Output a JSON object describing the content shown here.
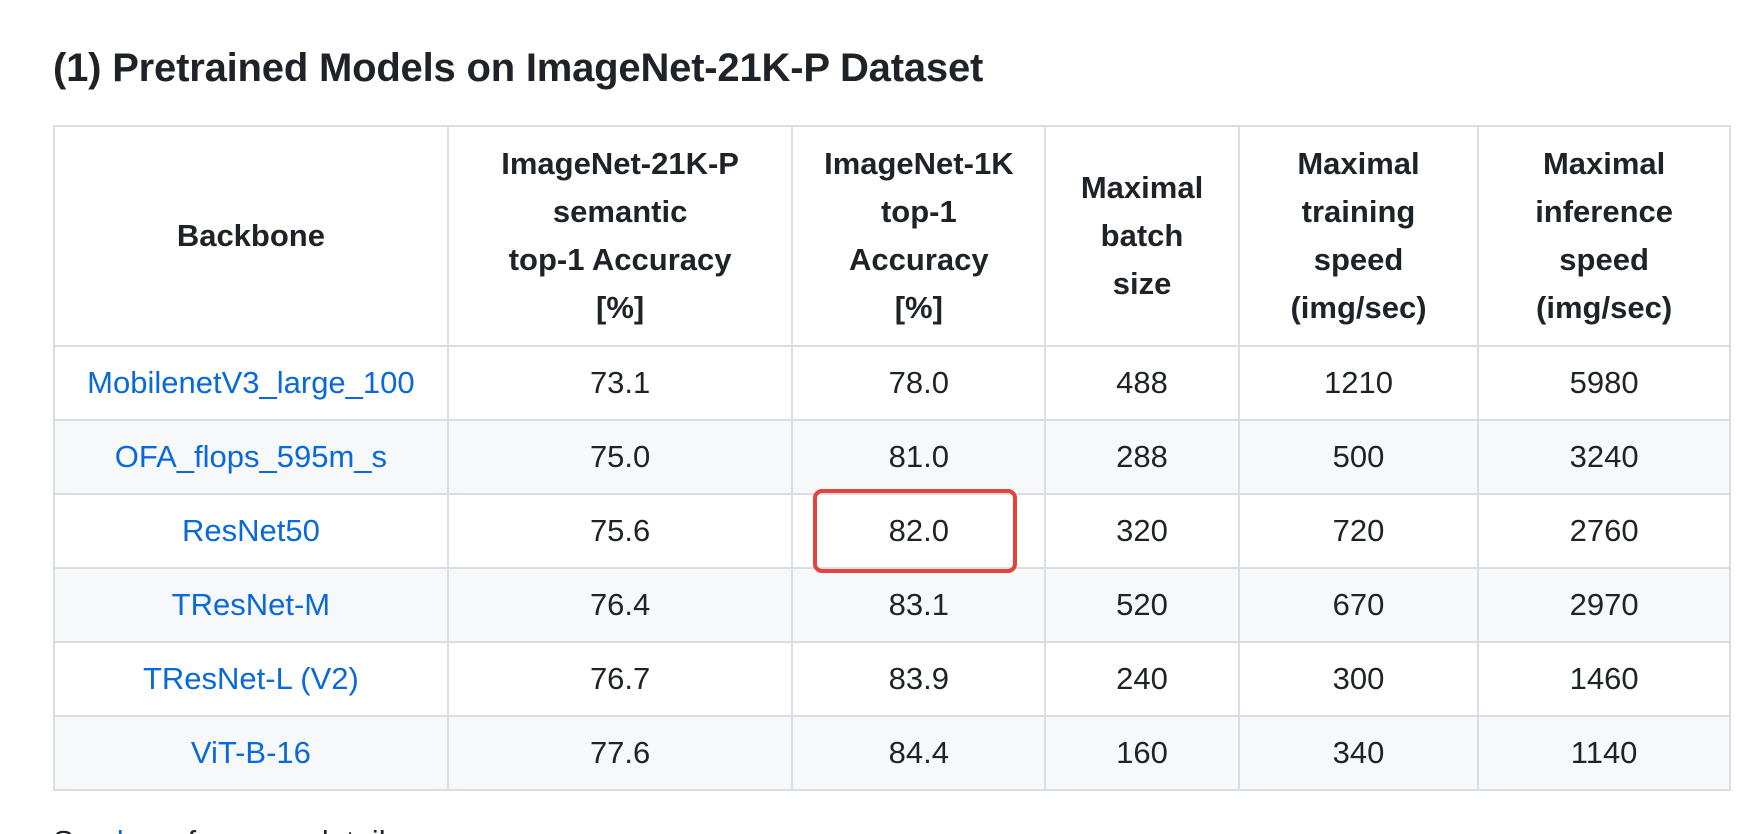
{
  "heading": "(1) Pretrained Models on ImageNet-21K-P Dataset",
  "table": {
    "headers": [
      [
        "Backbone"
      ],
      [
        "ImageNet-21K-P",
        "semantic",
        "top-1 Accuracy",
        "[%]"
      ],
      [
        "ImageNet-1K",
        "top-1",
        "Accuracy",
        "[%]"
      ],
      [
        "Maximal",
        "batch",
        "size"
      ],
      [
        "Maximal",
        "training",
        "speed",
        "(img/sec)"
      ],
      [
        "Maximal",
        "inference",
        "speed",
        "(img/sec)"
      ]
    ],
    "rows": [
      {
        "backbone": "MobilenetV3_large_100",
        "in21k_acc": "73.1",
        "in1k_acc": "78.0",
        "batch": "488",
        "train_speed": "1210",
        "infer_speed": "5980"
      },
      {
        "backbone": "OFA_flops_595m_s",
        "in21k_acc": "75.0",
        "in1k_acc": "81.0",
        "batch": "288",
        "train_speed": "500",
        "infer_speed": "3240"
      },
      {
        "backbone": "ResNet50",
        "in21k_acc": "75.6",
        "in1k_acc": "82.0",
        "batch": "320",
        "train_speed": "720",
        "infer_speed": "2760"
      },
      {
        "backbone": "TResNet-M",
        "in21k_acc": "76.4",
        "in1k_acc": "83.1",
        "batch": "520",
        "train_speed": "670",
        "infer_speed": "2970"
      },
      {
        "backbone": "TResNet-L (V2)",
        "in21k_acc": "76.7",
        "in1k_acc": "83.9",
        "batch": "240",
        "train_speed": "300",
        "infer_speed": "1460"
      },
      {
        "backbone": "ViT-B-16",
        "in21k_acc": "77.6",
        "in1k_acc": "84.4",
        "batch": "160",
        "train_speed": "340",
        "infer_speed": "1140"
      }
    ],
    "highlighted_cell": {
      "row": 2,
      "column": "in1k_acc"
    }
  },
  "footer_partial": {
    "prefix": "See ",
    "link": "here",
    "suffix": " for more details"
  },
  "colors": {
    "link": "#0969da",
    "highlight_border": "#e0443a",
    "border": "#d8dee4",
    "stripe": "#f6f8fa",
    "text": "#1f2328"
  }
}
